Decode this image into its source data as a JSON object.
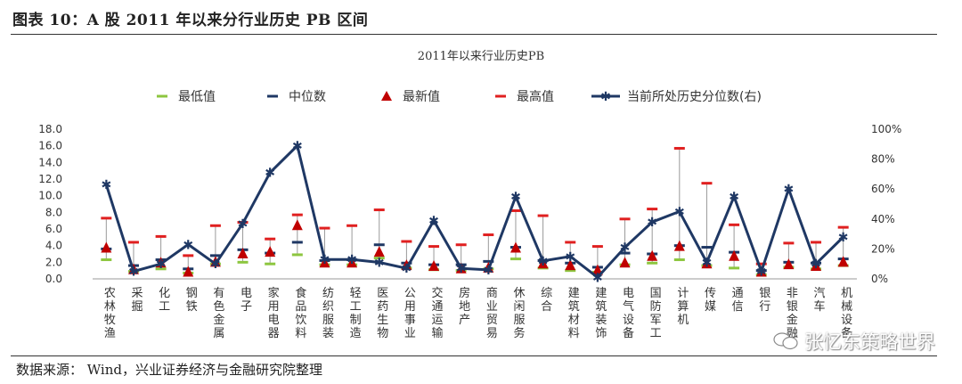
{
  "header": {
    "figure_title": "图表 10：A 股 2011 年以来分行业历史 PB 区间"
  },
  "footer": {
    "source": "数据来源： Wind，兴业证券经济与金融研究院整理",
    "watermark": "张忆东策略世界"
  },
  "colors": {
    "min": "#8dc63f",
    "median": "#1f3864",
    "latest": "#c00000",
    "max": "#e02020",
    "percentile": "#1f3864",
    "range_line": "#9a9a9a"
  },
  "chart_data": {
    "type": "line",
    "title": "2011年以来行业历史PB",
    "legend_position": "top",
    "categories": [
      "农林牧渔",
      "采掘",
      "化工",
      "钢铁",
      "有色金属",
      "电子",
      "家用电器",
      "食品饮料",
      "纺织服装",
      "轻工制造",
      "医药生物",
      "公用事业",
      "交通运输",
      "房地产",
      "商业贸易",
      "休闲服务",
      "综合",
      "建筑材料",
      "建筑装饰",
      "电气设备",
      "国防军工",
      "计算机",
      "传媒",
      "通信",
      "银行",
      "非银金融",
      "汽车",
      "机械设备"
    ],
    "y_left": {
      "range": [
        0,
        18
      ],
      "ticks": [
        "0.0",
        "2.0",
        "4.0",
        "6.0",
        "8.0",
        "10.0",
        "12.0",
        "14.0",
        "16.0",
        "18.0"
      ]
    },
    "y_right": {
      "range": [
        0,
        100
      ],
      "ticks": [
        "0%",
        "20%",
        "40%",
        "60%",
        "80%",
        "100%"
      ]
    },
    "series": [
      {
        "name": "最低值",
        "kind": "marker-dash",
        "values": [
          2.3,
          0.9,
          1.2,
          0.7,
          1.8,
          2.0,
          1.8,
          2.9,
          1.7,
          1.7,
          2.5,
          1.3,
          1.1,
          1.0,
          1.2,
          2.4,
          1.3,
          1.0,
          0.8,
          1.7,
          1.9,
          2.3,
          1.6,
          1.3,
          0.5,
          1.4,
          1.2,
          1.6
        ]
      },
      {
        "name": "中位数",
        "kind": "marker-dash",
        "values": [
          3.6,
          1.6,
          2.3,
          1.2,
          2.8,
          3.5,
          3.1,
          4.4,
          2.2,
          2.3,
          4.1,
          1.9,
          1.7,
          1.7,
          2.1,
          3.8,
          2.2,
          1.9,
          1.4,
          3.1,
          3.0,
          4.0,
          3.8,
          3.2,
          1.0,
          2.0,
          1.9,
          2.4
        ]
      },
      {
        "name": "最新值",
        "kind": "marker-triangle",
        "values": [
          3.7,
          1.1,
          1.9,
          0.8,
          2.0,
          3.0,
          3.2,
          6.4,
          1.9,
          1.9,
          3.2,
          1.6,
          1.5,
          1.2,
          1.3,
          3.7,
          1.8,
          1.6,
          1.0,
          1.9,
          2.7,
          3.9,
          1.8,
          2.7,
          0.8,
          1.7,
          1.5,
          2.0
        ]
      },
      {
        "name": "最高值",
        "kind": "marker-dash",
        "values": [
          7.3,
          4.4,
          5.1,
          2.8,
          6.4,
          6.8,
          4.8,
          7.7,
          6.1,
          6.4,
          8.3,
          4.5,
          3.9,
          4.1,
          5.3,
          8.2,
          7.6,
          4.4,
          3.9,
          7.2,
          8.4,
          15.7,
          11.5,
          6.5,
          1.8,
          4.3,
          4.4,
          6.2
        ]
      },
      {
        "name": "当前所处历史分位数(右)",
        "axis": "right",
        "kind": "line",
        "values": [
          63,
          5,
          10,
          23,
          10,
          37,
          71,
          89,
          13,
          13,
          11,
          7,
          39,
          7,
          6,
          55,
          12,
          15,
          1,
          21,
          38,
          45,
          11,
          55,
          5,
          60,
          10,
          28
        ]
      }
    ]
  }
}
